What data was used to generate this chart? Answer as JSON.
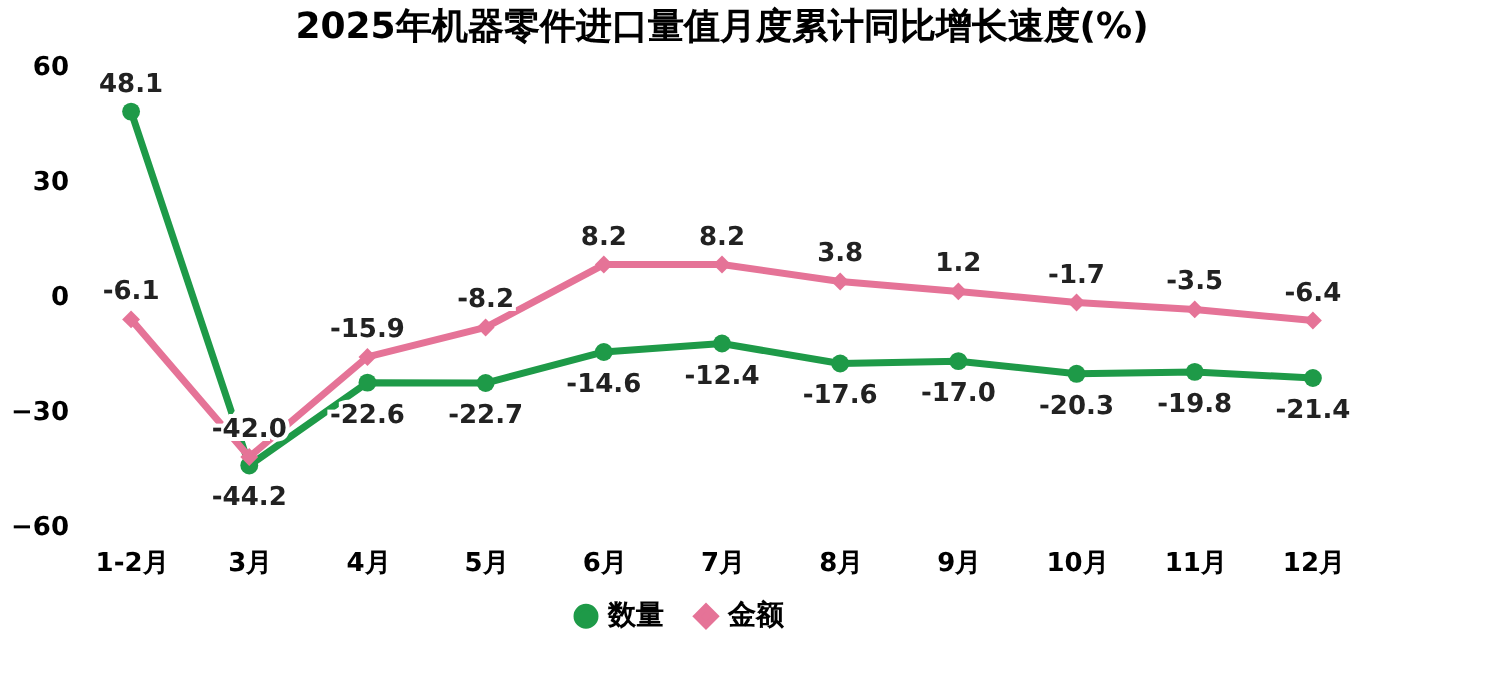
{
  "chart_data": {
    "type": "line",
    "title": "2025年机器零件进口量值月度累计同比增长速度(%)",
    "categories": [
      "1-2月",
      "3月",
      "4月",
      "5月",
      "6月",
      "7月",
      "8月",
      "9月",
      "10月",
      "11月",
      "12月"
    ],
    "series": [
      {
        "name": "数量",
        "color": "#1e9a48",
        "marker": "circle",
        "values": [
          48.1,
          -44.2,
          -22.6,
          -22.7,
          -14.6,
          -12.4,
          -17.6,
          -17.0,
          -20.3,
          -19.8,
          -21.4
        ],
        "value_labels": [
          "48.1",
          "-44.2",
          "-22.6",
          "-22.7",
          "-14.6",
          "-12.4",
          "-17.6",
          "-17.0",
          "-20.3",
          "-19.8",
          "-21.4"
        ]
      },
      {
        "name": "金额",
        "color": "#e57397",
        "marker": "diamond",
        "values": [
          -6.1,
          -42.0,
          -15.9,
          -8.2,
          8.2,
          8.2,
          3.8,
          1.2,
          -1.7,
          -3.5,
          -6.4
        ],
        "value_labels": [
          "-6.1",
          "-42.0",
          "-15.9",
          "-8.2",
          "8.2",
          "8.2",
          "3.8",
          "1.2",
          "-1.7",
          "-3.5",
          "-6.4"
        ]
      }
    ],
    "ylim": [
      -60,
      60
    ],
    "yticks": [
      -60,
      -30,
      0,
      30,
      60
    ],
    "grid": false,
    "legend": "bottom"
  }
}
